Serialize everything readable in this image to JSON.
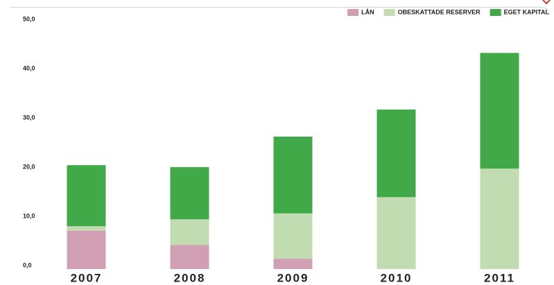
{
  "chart_data": {
    "type": "stacked_bar",
    "categories": [
      "2007",
      "2008",
      "2009",
      "2010",
      "2011"
    ],
    "series": [
      {
        "name": "LÅN",
        "color": "#d09fb3",
        "values": [
          7.8,
          4.9,
          2.1,
          0,
          0
        ]
      },
      {
        "name": "OBESKATTADE RESERVER",
        "color": "#c0dcb0",
        "values": [
          0.9,
          5.2,
          9.2,
          14.6,
          20.4
        ]
      },
      {
        "name": "EGET KAPITAL",
        "color": "#41a947",
        "values": [
          12.4,
          10.6,
          15.6,
          17.8,
          23.5
        ]
      }
    ],
    "ylim": [
      0,
      50
    ],
    "yticks": [
      {
        "value": 0,
        "label": "0,0"
      },
      {
        "value": 10,
        "label": "10,0"
      },
      {
        "value": 20,
        "label": "20,0"
      },
      {
        "value": 30,
        "label": "30,0"
      },
      {
        "value": 40,
        "label": "40,0"
      },
      {
        "value": 50,
        "label": "50,0"
      }
    ],
    "grid": false,
    "legend": "top-right"
  }
}
